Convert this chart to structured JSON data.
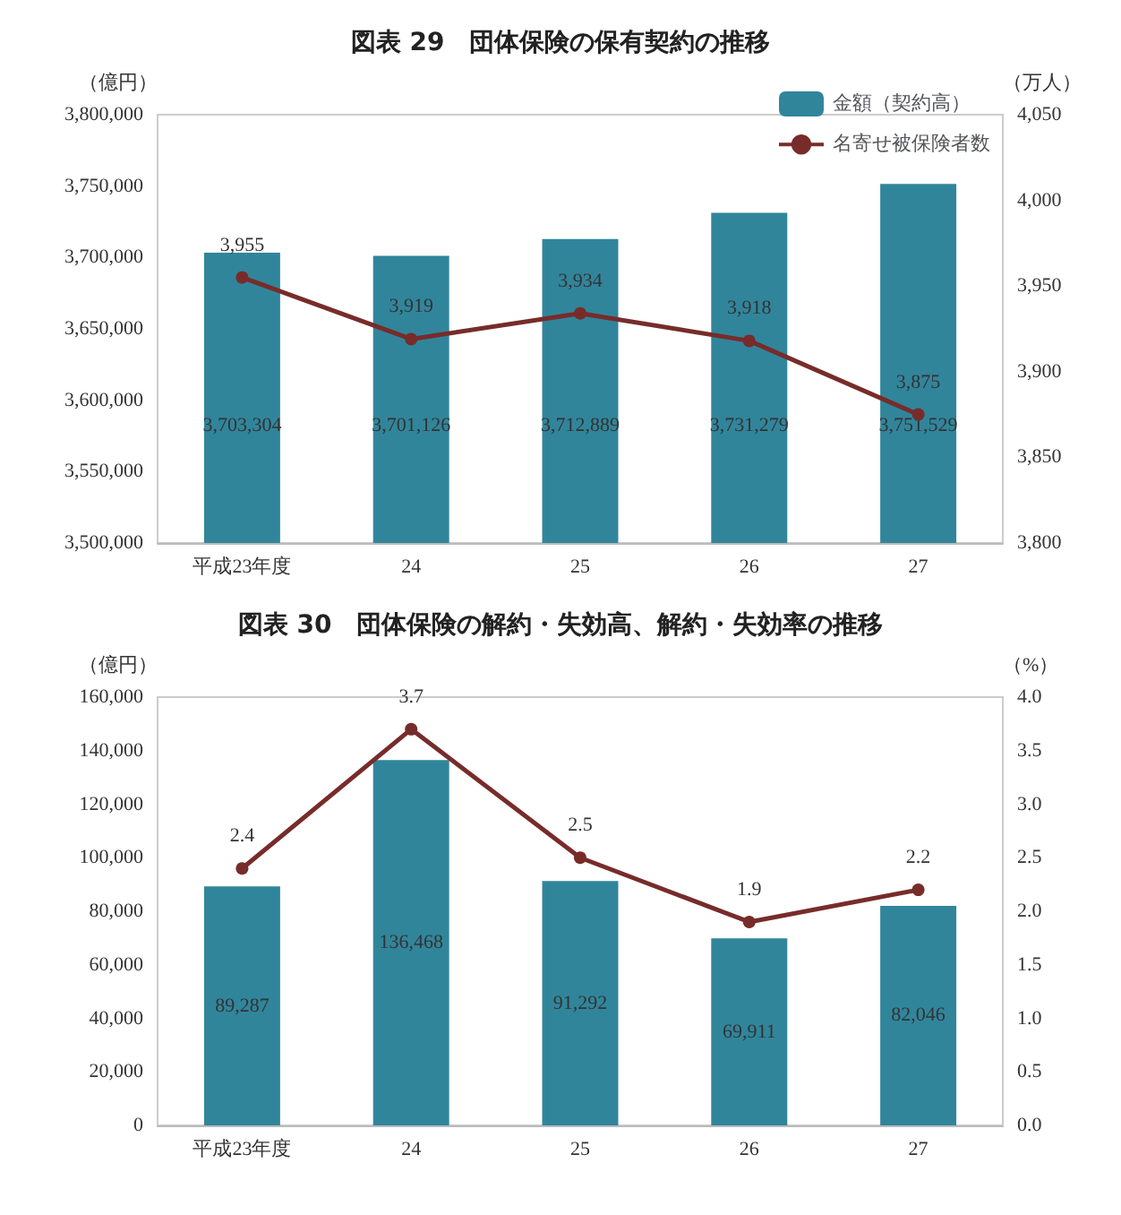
{
  "chart_data": [
    {
      "type": "bar",
      "title": "図表 29　団体保険の保有契約の推移",
      "ylabel": "（億円）",
      "y2label": "（万人）",
      "categories": [
        "平成23年度",
        "24",
        "25",
        "26",
        "27"
      ],
      "series": [
        {
          "name": "金額（契約高）",
          "color": "#31859b",
          "values": [
            3703304,
            3701126,
            3712889,
            3731279,
            3751529
          ],
          "value_labels": [
            "3,703,304",
            "3,701,126",
            "3,712,889",
            "3,731,279",
            "3,751,529"
          ]
        },
        {
          "name": "名寄せ被保険者数",
          "type": "line",
          "axis": "y2",
          "color": "#772c2a",
          "marker": "circle",
          "values": [
            3955,
            3919,
            3934,
            3918,
            3875
          ],
          "value_labels": [
            "3,955",
            "3,919",
            "3,934",
            "3,918",
            "3,875"
          ]
        }
      ],
      "ylim": [
        3500000,
        3800000
      ],
      "yticks": [
        {
          "value": 3500000,
          "label": "3,500,000"
        },
        {
          "value": 3550000,
          "label": "3,550,000"
        },
        {
          "value": 3600000,
          "label": "3,600,000"
        },
        {
          "value": 3650000,
          "label": "3,650,000"
        },
        {
          "value": 3700000,
          "label": "3,700,000"
        },
        {
          "value": 3750000,
          "label": "3,750,000"
        },
        {
          "value": 3800000,
          "label": "3,800,000"
        }
      ],
      "y2lim": [
        3800,
        4050
      ],
      "y2ticks": [
        {
          "value": 3800,
          "label": "3,800"
        },
        {
          "value": 3850,
          "label": "3,850"
        },
        {
          "value": 3900,
          "label": "3,900"
        },
        {
          "value": 3950,
          "label": "3,950"
        },
        {
          "value": 4000,
          "label": "4,000"
        },
        {
          "value": 4050,
          "label": "4,050"
        }
      ],
      "legend": "top right",
      "grid": false
    },
    {
      "type": "bar",
      "title": "図表 30　団体保険の解約・失効高、解約・失効率の推移",
      "ylabel": "（億円）",
      "y2label": "（%）",
      "categories": [
        "平成23年度",
        "24",
        "25",
        "26",
        "27"
      ],
      "series": [
        {
          "color": "#31859b",
          "values": [
            89287,
            136468,
            91292,
            69911,
            82046
          ],
          "value_labels": [
            "89,287",
            "136,468",
            "91,292",
            "69,911",
            "82,046"
          ]
        },
        {
          "type": "line",
          "axis": "y2",
          "color": "#772c2a",
          "marker": "circle",
          "values": [
            2.4,
            3.7,
            2.5,
            1.9,
            2.2
          ],
          "value_labels": [
            "2.4",
            "3.7",
            "2.5",
            "1.9",
            "2.2"
          ]
        }
      ],
      "ylim": [
        0,
        160000
      ],
      "yticks": [
        0,
        {
          "value": 20000,
          "label": "20,000"
        },
        {
          "value": 40000,
          "label": "40,000"
        },
        {
          "value": 60000,
          "label": "60,000"
        },
        {
          "value": 80000,
          "label": "80,000"
        },
        {
          "value": 100000,
          "label": "100,000"
        },
        {
          "value": 120000,
          "label": "120,000"
        },
        {
          "value": 140000,
          "label": "140,000"
        },
        {
          "value": 160000,
          "label": "160,000"
        }
      ],
      "y2lim": [
        0,
        4
      ],
      "y2ticks": [
        {
          "value": 0,
          "label": "0.0"
        },
        {
          "value": 0.5,
          "label": "0.5"
        },
        {
          "value": 1,
          "label": "1.0"
        },
        {
          "value": 1.5,
          "label": "1.5"
        },
        {
          "value": 2,
          "label": "2.0"
        },
        {
          "value": 2.5,
          "label": "2.5"
        },
        {
          "value": 3,
          "label": "3.0"
        },
        {
          "value": 3.5,
          "label": "3.5"
        },
        {
          "value": 4,
          "label": "4.0"
        }
      ],
      "grid": false
    }
  ]
}
